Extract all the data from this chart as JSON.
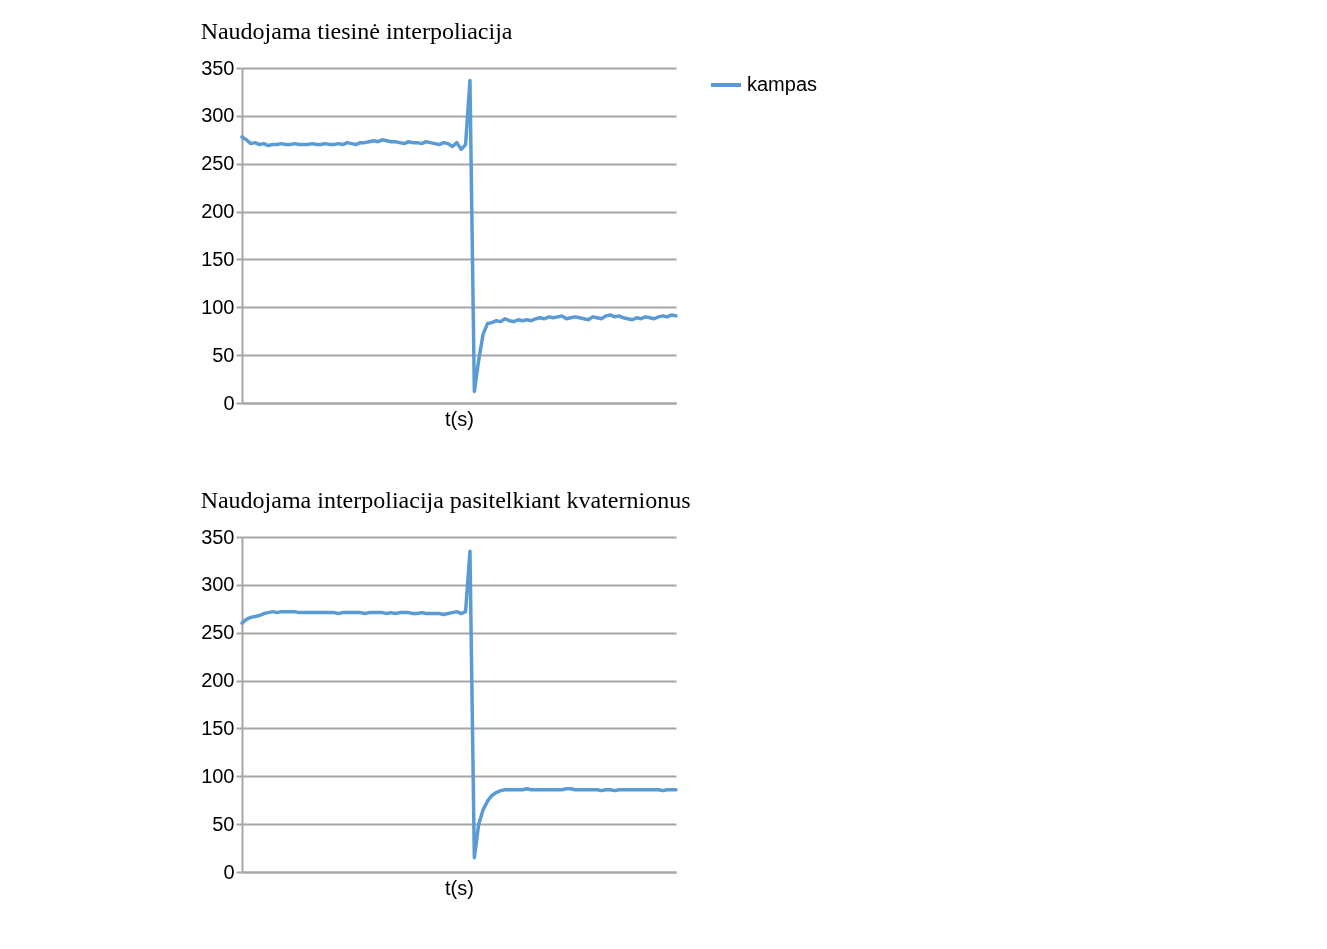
{
  "chart_data": [
    {
      "type": "line",
      "title": "Naudojama tiesinė interpoliacija",
      "xlabel": "t(s)",
      "categories": [
        null,
        null,
        null,
        null,
        null,
        null,
        null,
        null,
        null,
        null,
        null,
        null,
        null,
        null,
        null,
        null,
        null,
        null,
        null,
        null,
        null,
        null,
        null,
        null,
        null,
        null,
        null,
        null,
        null,
        null,
        null,
        null,
        null,
        null,
        null,
        null,
        null,
        null,
        null,
        null,
        null,
        null,
        null,
        null,
        null,
        null,
        null,
        null,
        null,
        null,
        null,
        null,
        null,
        null,
        null,
        null,
        null,
        null,
        null,
        null,
        null,
        null,
        null,
        null,
        null,
        null,
        null,
        null,
        null,
        null,
        null,
        null,
        null,
        null,
        null,
        null,
        null,
        null,
        null,
        null,
        null,
        null,
        null,
        null,
        null,
        null,
        null,
        null,
        null,
        null,
        null,
        null,
        null,
        null,
        null,
        null,
        null,
        null,
        null,
        null
      ],
      "series": [
        {
          "name": "kampas",
          "color": "#5b9bd5",
          "values": [
            278,
            275,
            271,
            272,
            270,
            271,
            269,
            270,
            270,
            271,
            270,
            270,
            271,
            270,
            270,
            270,
            271,
            270,
            270,
            271,
            270,
            270,
            271,
            270,
            272,
            271,
            270,
            272,
            272,
            273,
            274,
            273,
            275,
            274,
            273,
            273,
            272,
            271,
            273,
            272,
            272,
            271,
            273,
            272,
            271,
            270,
            272,
            271,
            268,
            272,
            265,
            270,
            337,
            12,
            45,
            72,
            83,
            84,
            86,
            85,
            88,
            86,
            85,
            87,
            86,
            87,
            86,
            88,
            89,
            88,
            90,
            89,
            90,
            91,
            88,
            89,
            90,
            89,
            88,
            87,
            90,
            89,
            88,
            91,
            92,
            90,
            91,
            89,
            88,
            87,
            89,
            88,
            90,
            89,
            88,
            90,
            91,
            90,
            92,
            91
          ]
        }
      ],
      "ylim": [
        0,
        350
      ],
      "yticks": [
        0,
        50,
        100,
        150,
        200,
        250,
        300,
        350
      ],
      "grid": "y",
      "legend": "right",
      "tick_labels": "y",
      "marker": "none",
      "line_style": "solid"
    },
    {
      "type": "line",
      "title": "Naudojama interpoliacija pasitelkiant kvaternionus",
      "xlabel": "t(s)",
      "categories": [
        null,
        null,
        null,
        null,
        null,
        null,
        null,
        null,
        null,
        null,
        null,
        null,
        null,
        null,
        null,
        null,
        null,
        null,
        null,
        null,
        null,
        null,
        null,
        null,
        null,
        null,
        null,
        null,
        null,
        null,
        null,
        null,
        null,
        null,
        null,
        null,
        null,
        null,
        null,
        null,
        null,
        null,
        null,
        null,
        null,
        null,
        null,
        null,
        null,
        null,
        null,
        null,
        null,
        null,
        null,
        null,
        null,
        null,
        null,
        null,
        null,
        null,
        null,
        null,
        null,
        null,
        null,
        null,
        null,
        null,
        null,
        null,
        null,
        null,
        null,
        null,
        null,
        null,
        null,
        null,
        null,
        null,
        null,
        null,
        null,
        null,
        null,
        null,
        null,
        null,
        null,
        null,
        null,
        null,
        null,
        null,
        null,
        null,
        null,
        null
      ],
      "series": [
        {
          "name": "kampas",
          "color": "#5b9bd5",
          "values": [
            260,
            264,
            266,
            267,
            268,
            270,
            271,
            272,
            271,
            272,
            272,
            272,
            272,
            271,
            271,
            271,
            271,
            271,
            271,
            271,
            271,
            271,
            270,
            271,
            271,
            271,
            271,
            271,
            270,
            271,
            271,
            271,
            271,
            270,
            271,
            270,
            271,
            271,
            271,
            270,
            270,
            271,
            270,
            270,
            270,
            270,
            269,
            270,
            271,
            272,
            270,
            272,
            335,
            15,
            50,
            65,
            74,
            80,
            83,
            85,
            86,
            86,
            86,
            86,
            86,
            87,
            86,
            86,
            86,
            86,
            86,
            86,
            86,
            86,
            87,
            87,
            86,
            86,
            86,
            86,
            86,
            86,
            85,
            86,
            86,
            85,
            86,
            86,
            86,
            86,
            86,
            86,
            86,
            86,
            86,
            86,
            85,
            86,
            86,
            86
          ]
        }
      ],
      "ylim": [
        0,
        350
      ],
      "yticks": [
        0,
        50,
        100,
        150,
        200,
        250,
        300,
        350
      ],
      "grid": "y",
      "legend": "right",
      "tick_labels": "y",
      "marker": "none",
      "line_style": "solid"
    }
  ]
}
